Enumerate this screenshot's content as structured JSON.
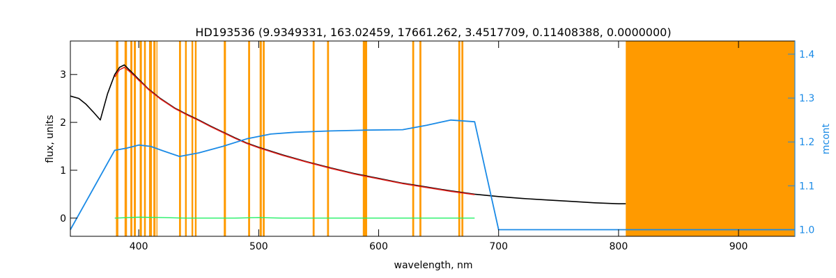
{
  "chart_data": {
    "type": "line",
    "title": "HD193536    (9.9349331, 163.02459, 17661.262, 3.4517709, 0.11408388, 0.0000000)",
    "xlabel": "wavelength, nm",
    "ylabel": "flux, units",
    "y2label": "mcont",
    "xlim": [
      343,
      947
    ],
    "ylim": [
      -0.38,
      3.7
    ],
    "y2lim": [
      0.985,
      1.43
    ],
    "xticks": [
      400,
      500,
      600,
      700,
      800,
      900
    ],
    "yticks": [
      0,
      1,
      2,
      3
    ],
    "y2ticks": [
      1.0,
      1.1,
      1.2,
      1.3,
      1.4
    ],
    "y2tick_labels": [
      "1.0",
      "1.1",
      "1.2",
      "1.3",
      "1.4"
    ],
    "colors": {
      "observed": "#000000",
      "model": "#e0201b",
      "continuum": "#1a8ae6",
      "residual": "#22f066",
      "mask": "#ff9a00",
      "axis2": "#1a8ae6"
    },
    "masked_regions": [
      [
        381.0,
        383.0
      ],
      [
        388.2,
        390.2
      ],
      [
        393.0,
        394.7
      ],
      [
        395.9,
        397.6
      ],
      [
        400.8,
        402.6
      ],
      [
        404.4,
        405.9
      ],
      [
        408.6,
        411.0
      ],
      [
        412.2,
        414.0
      ],
      [
        414.8,
        415.6
      ],
      [
        433.6,
        435.2
      ],
      [
        438.6,
        440.0
      ],
      [
        444.0,
        445.4
      ],
      [
        446.8,
        448.2
      ],
      [
        470.9,
        472.7
      ],
      [
        491.2,
        492.8
      ],
      [
        500.8,
        502.6
      ],
      [
        503.4,
        505.0
      ],
      [
        545.0,
        546.6
      ],
      [
        557.0,
        558.6
      ],
      [
        586.8,
        590.4
      ],
      [
        628.0,
        629.6
      ],
      [
        634.0,
        635.6
      ],
      [
        666.4,
        668.0
      ],
      [
        669.0,
        670.6
      ],
      [
        806.0,
        947.0
      ]
    ],
    "series": [
      {
        "key": "observed",
        "x": [
          343,
          350,
          356,
          362,
          368,
          374,
          380,
          384,
          388,
          392,
          396,
          400,
          404,
          408,
          412,
          418,
          424,
          430,
          440,
          450,
          460,
          470,
          480,
          490,
          500,
          510,
          520,
          540,
          560,
          580,
          600,
          620,
          640,
          660,
          680,
          700,
          720,
          740,
          760,
          780,
          800,
          806
        ],
        "y": [
          2.55,
          2.5,
          2.38,
          2.22,
          2.05,
          2.6,
          3.0,
          3.15,
          3.2,
          3.1,
          3.0,
          2.9,
          2.8,
          2.7,
          2.62,
          2.5,
          2.4,
          2.3,
          2.17,
          2.05,
          1.92,
          1.8,
          1.68,
          1.57,
          1.48,
          1.4,
          1.32,
          1.18,
          1.05,
          0.93,
          0.83,
          0.73,
          0.65,
          0.57,
          0.5,
          0.45,
          0.41,
          0.38,
          0.35,
          0.32,
          0.3,
          0.3
        ]
      },
      {
        "key": "model",
        "x": [
          380,
          384,
          388,
          392,
          396,
          400,
          404,
          408,
          412,
          418,
          424,
          430,
          440,
          450,
          460,
          470,
          480,
          490,
          500,
          510,
          520,
          540,
          560,
          580,
          600,
          620,
          640,
          660,
          680
        ],
        "y": [
          2.95,
          3.1,
          3.15,
          3.07,
          2.98,
          2.88,
          2.79,
          2.69,
          2.61,
          2.49,
          2.39,
          2.29,
          2.16,
          2.04,
          1.91,
          1.79,
          1.67,
          1.56,
          1.47,
          1.39,
          1.31,
          1.17,
          1.04,
          0.92,
          0.82,
          0.72,
          0.64,
          0.56,
          0.49
        ]
      },
      {
        "key": "residual",
        "x": [
          380,
          400,
          420,
          440,
          460,
          480,
          500,
          520,
          540,
          560,
          580,
          600,
          620,
          640,
          660,
          680
        ],
        "y": [
          0.0,
          0.02,
          0.01,
          0.0,
          0.0,
          0.0,
          0.01,
          0.0,
          0.0,
          0.0,
          0.0,
          0.0,
          0.0,
          0.0,
          0.0,
          0.0
        ]
      },
      {
        "key": "continuum",
        "axis": "y2",
        "x": [
          343,
          380,
          390,
          400,
          410,
          420,
          434,
          450,
          470,
          490,
          510,
          530,
          560,
          590,
          620,
          640,
          660,
          680,
          700,
          750,
          800,
          850,
          900,
          947
        ],
        "y": [
          1.0,
          1.181,
          1.186,
          1.193,
          1.19,
          1.18,
          1.167,
          1.175,
          1.19,
          1.207,
          1.218,
          1.222,
          1.225,
          1.227,
          1.228,
          1.238,
          1.25,
          1.246,
          1.0,
          1.0,
          1.0,
          1.0,
          1.0,
          1.0
        ]
      }
    ]
  }
}
